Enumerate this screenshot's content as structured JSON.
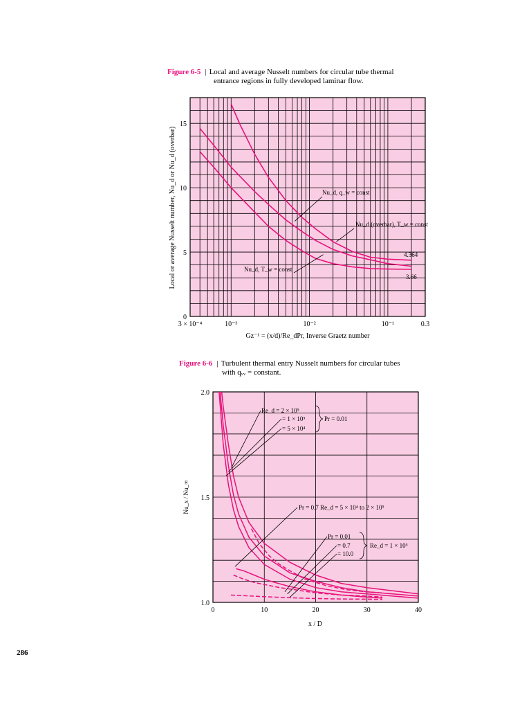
{
  "figure1": {
    "number": "Figure 6-5",
    "caption_line1": "Local and average Nusselt numbers for circular tube thermal",
    "caption_line2": "entrance regions in fully developed laminar flow."
  },
  "figure2": {
    "number": "Figure 6-6",
    "caption_line1": "Turbulent thermal entry Nusselt numbers for circular tubes",
    "caption_line2": "with qᵥᵥ = constant."
  },
  "page_number": "286",
  "colors": {
    "plot_background": "#f9cde3",
    "curve": "#e8127c",
    "figure_label": "#e8127c",
    "grid": "#000000"
  },
  "chart_data": [
    {
      "type": "line",
      "x_scale": "log",
      "xlim": [
        0.0003,
        0.3
      ],
      "ylim": [
        0,
        17
      ],
      "grid": true,
      "ylabel": "Local or average Nusselt number, Nu_d or Nu_d (overbar)",
      "xlabel": "Gz⁻¹ = (x/d)/Re_dPr, Inverse Graetz number",
      "x_tick_labels": [
        "3 × 10⁻⁴",
        "10⁻³",
        "10⁻²",
        "10⁻¹",
        "0.3"
      ],
      "x_ticks": [
        0.0003,
        0.001,
        0.01,
        0.1,
        0.3
      ],
      "y_ticks": [
        0,
        5,
        10,
        15
      ],
      "y_tick_labels": [
        "0",
        "5",
        "10",
        "15"
      ],
      "series": [
        {
          "x": [
            0.001,
            0.0013,
            0.002,
            0.003,
            0.005,
            0.008,
            0.012,
            0.02,
            0.035,
            0.06,
            0.1,
            0.2
          ],
          "y": [
            16.5,
            14.9,
            12.6,
            10.8,
            9.0,
            7.7,
            6.8,
            5.8,
            5.05,
            4.6,
            4.45,
            4.37
          ]
        },
        {
          "x": [
            0.0004,
            0.0006,
            0.001,
            0.002,
            0.003,
            0.005,
            0.008,
            0.012,
            0.02,
            0.035,
            0.06,
            0.1,
            0.2
          ],
          "y": [
            14.6,
            13.3,
            11.6,
            9.7,
            8.7,
            7.5,
            6.6,
            5.9,
            5.2,
            4.7,
            4.4,
            4.1,
            3.9
          ]
        },
        {
          "x": [
            0.0004,
            0.0006,
            0.001,
            0.002,
            0.003,
            0.005,
            0.008,
            0.012,
            0.02,
            0.035,
            0.06,
            0.1,
            0.2
          ],
          "y": [
            12.8,
            11.6,
            10.0,
            8.1,
            7.0,
            5.9,
            5.1,
            4.5,
            4.1,
            3.85,
            3.72,
            3.68,
            3.66
          ]
        }
      ],
      "annotations": [
        {
          "text": "Nu_d, q_w = const",
          "points_to": {
            "x": 0.0065,
            "y": 7.4
          }
        },
        {
          "text": "Nu_d (overbar), T_w = const",
          "points_to": {
            "x": 0.022,
            "y": 5.8
          }
        },
        {
          "text": "Nu_d, T_w = const",
          "points_to": {
            "x": 0.015,
            "y": 4.8
          }
        },
        {
          "text": "4.364",
          "points_to": {
            "x": 0.3,
            "y": 4.364
          }
        },
        {
          "text": "3.66",
          "points_to": {
            "x": 0.3,
            "y": 3.66
          }
        }
      ]
    },
    {
      "type": "line",
      "xlim": [
        0,
        40
      ],
      "ylim": [
        1.0,
        2.0
      ],
      "grid": true,
      "xlabel": "x / D",
      "ylabel": "Nu_x / Nu_∞",
      "x_ticks": [
        0,
        10,
        20,
        30,
        40
      ],
      "x_tick_labels": [
        "0",
        "10",
        "20",
        "30",
        "40"
      ],
      "y_ticks": [
        1.0,
        1.5,
        2.0
      ],
      "y_tick_labels": [
        "1.0",
        "1.5",
        "2.0"
      ],
      "series": [
        {
          "style": "solid",
          "x": [
            1.7,
            2,
            3,
            4,
            5,
            7,
            10,
            15,
            20,
            25,
            30,
            35,
            40
          ],
          "y": [
            2.0,
            1.93,
            1.75,
            1.6,
            1.5,
            1.38,
            1.28,
            1.19,
            1.13,
            1.09,
            1.07,
            1.055,
            1.04
          ]
        },
        {
          "style": "solid",
          "x": [
            1.4,
            2,
            3,
            4,
            5,
            7,
            10,
            15,
            20,
            25,
            30,
            35,
            40
          ],
          "y": [
            2.0,
            1.84,
            1.65,
            1.51,
            1.42,
            1.31,
            1.22,
            1.14,
            1.1,
            1.07,
            1.05,
            1.04,
            1.03
          ]
        },
        {
          "style": "solid",
          "x": [
            1.2,
            2,
            3,
            4,
            5,
            7,
            10,
            15,
            20,
            25,
            30,
            35,
            40
          ],
          "y": [
            2.0,
            1.75,
            1.56,
            1.44,
            1.36,
            1.26,
            1.18,
            1.11,
            1.07,
            1.05,
            1.04,
            1.03,
            1.02
          ]
        },
        {
          "style": "solid",
          "x": [
            4.5,
            6,
            8,
            10,
            12,
            15,
            20,
            25,
            30,
            33
          ],
          "y": [
            1.16,
            1.15,
            1.13,
            1.11,
            1.095,
            1.075,
            1.05,
            1.035,
            1.025,
            1.02
          ]
        },
        {
          "style": "dashed",
          "x": [
            7.5,
            9,
            11,
            13,
            15,
            18,
            22,
            26,
            30,
            33
          ],
          "y": [
            1.35,
            1.28,
            1.22,
            1.18,
            1.15,
            1.11,
            1.08,
            1.06,
            1.05,
            1.045
          ]
        },
        {
          "style": "dashed",
          "x": [
            4,
            6,
            8,
            10,
            13,
            16,
            20,
            25,
            30,
            33
          ],
          "y": [
            1.13,
            1.11,
            1.095,
            1.085,
            1.07,
            1.06,
            1.045,
            1.035,
            1.03,
            1.025
          ]
        },
        {
          "style": "dashed",
          "x": [
            3.5,
            6,
            10,
            15,
            20,
            25,
            30,
            33
          ],
          "y": [
            1.035,
            1.032,
            1.027,
            1.022,
            1.018,
            1.016,
            1.015,
            1.014
          ]
        }
      ],
      "annotations": [
        {
          "text": "Re_d = 2 × 10⁵"
        },
        {
          "text": "= 1 × 10⁵"
        },
        {
          "text": "= 5 × 10⁴"
        },
        {
          "text": "Pr = 0.01"
        },
        {
          "text": "Pr = 0.7 Re_d = 5 × 10⁴ to 2 × 10⁵"
        },
        {
          "text": "Pr = 0.01"
        },
        {
          "text": "= 0.7"
        },
        {
          "text": "= 10.0"
        },
        {
          "text": "Re_d = 1 × 10⁵"
        }
      ]
    }
  ]
}
